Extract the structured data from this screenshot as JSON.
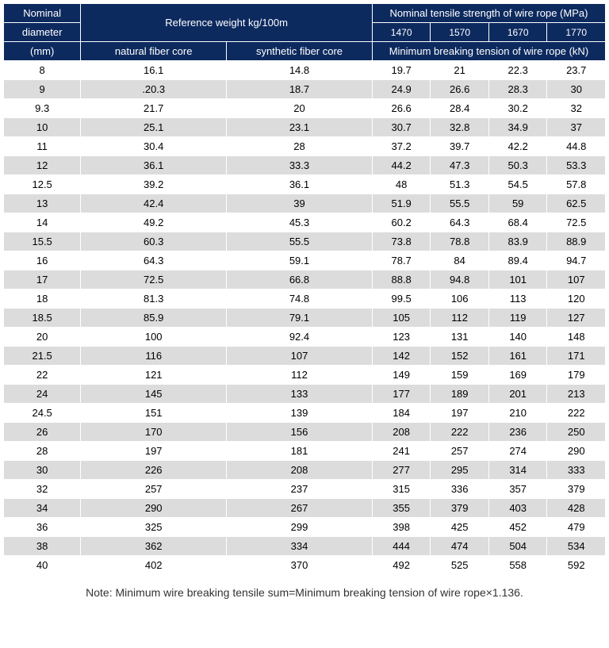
{
  "header": {
    "nominal": "Nominal",
    "diameter": "diameter",
    "diameter_unit": "(mm)",
    "ref_weight": "Reference weight kg/100m",
    "natural_core": "natural fiber core",
    "synthetic_core": "synthetic fiber core",
    "tensile_strength": "Nominal tensile strength of wire rope (MPa)",
    "strengths": [
      "1470",
      "1570",
      "1670",
      "1770"
    ],
    "min_breaking": "Minimum breaking tension of wire rope (kN)"
  },
  "rows": [
    {
      "d": "8",
      "nat": "16.1",
      "syn": "14.8",
      "v": [
        "19.7",
        "21",
        "22.3",
        "23.7"
      ]
    },
    {
      "d": "9",
      "nat": ".20.3",
      "syn": "18.7",
      "v": [
        "24.9",
        "26.6",
        "28.3",
        "30"
      ]
    },
    {
      "d": "9.3",
      "nat": "21.7",
      "syn": "20",
      "v": [
        "26.6",
        "28.4",
        "30.2",
        "32"
      ]
    },
    {
      "d": "10",
      "nat": "25.1",
      "syn": "23.1",
      "v": [
        "30.7",
        "32.8",
        "34.9",
        "37"
      ]
    },
    {
      "d": "11",
      "nat": "30.4",
      "syn": "28",
      "v": [
        "37.2",
        "39.7",
        "42.2",
        "44.8"
      ]
    },
    {
      "d": "12",
      "nat": "36.1",
      "syn": "33.3",
      "v": [
        "44.2",
        "47.3",
        "50.3",
        "53.3"
      ]
    },
    {
      "d": "12.5",
      "nat": "39.2",
      "syn": "36.1",
      "v": [
        "48",
        "51.3",
        "54.5",
        "57.8"
      ]
    },
    {
      "d": "13",
      "nat": "42.4",
      "syn": "39",
      "v": [
        "51.9",
        "55.5",
        "59",
        "62.5"
      ]
    },
    {
      "d": "14",
      "nat": "49.2",
      "syn": "45.3",
      "v": [
        "60.2",
        "64.3",
        "68.4",
        "72.5"
      ]
    },
    {
      "d": "15.5",
      "nat": "60.3",
      "syn": "55.5",
      "v": [
        "73.8",
        "78.8",
        "83.9",
        "88.9"
      ]
    },
    {
      "d": "16",
      "nat": "64.3",
      "syn": "59.1",
      "v": [
        "78.7",
        "84",
        "89.4",
        "94.7"
      ]
    },
    {
      "d": "17",
      "nat": "72.5",
      "syn": "66.8",
      "v": [
        "88.8",
        "94.8",
        "101",
        "107"
      ]
    },
    {
      "d": "18",
      "nat": "81.3",
      "syn": "74.8",
      "v": [
        "99.5",
        "106",
        "113",
        "120"
      ]
    },
    {
      "d": "18.5",
      "nat": "85.9",
      "syn": "79.1",
      "v": [
        "105",
        "112",
        "119",
        "127"
      ]
    },
    {
      "d": "20",
      "nat": "100",
      "syn": "92.4",
      "v": [
        "123",
        "131",
        "140",
        "148"
      ]
    },
    {
      "d": "21.5",
      "nat": "116",
      "syn": "107",
      "v": [
        "142",
        "152",
        "161",
        "171"
      ]
    },
    {
      "d": "22",
      "nat": "121",
      "syn": "112",
      "v": [
        "149",
        "159",
        "169",
        "179"
      ]
    },
    {
      "d": "24",
      "nat": "145",
      "syn": "133",
      "v": [
        "177",
        "189",
        "201",
        "213"
      ]
    },
    {
      "d": "24.5",
      "nat": "151",
      "syn": "139",
      "v": [
        "184",
        "197",
        "210",
        "222"
      ]
    },
    {
      "d": "26",
      "nat": "170",
      "syn": "156",
      "v": [
        "208",
        "222",
        "236",
        "250"
      ]
    },
    {
      "d": "28",
      "nat": "197",
      "syn": "181",
      "v": [
        "241",
        "257",
        "274",
        "290"
      ]
    },
    {
      "d": "30",
      "nat": "226",
      "syn": "208",
      "v": [
        "277",
        "295",
        "314",
        "333"
      ]
    },
    {
      "d": "32",
      "nat": "257",
      "syn": "237",
      "v": [
        "315",
        "336",
        "357",
        "379"
      ]
    },
    {
      "d": "34",
      "nat": "290",
      "syn": "267",
      "v": [
        "355",
        "379",
        "403",
        "428"
      ]
    },
    {
      "d": "36",
      "nat": "325",
      "syn": "299",
      "v": [
        "398",
        "425",
        "452",
        "479"
      ]
    },
    {
      "d": "38",
      "nat": "362",
      "syn": "334",
      "v": [
        "444",
        "474",
        "504",
        "534"
      ]
    },
    {
      "d": "40",
      "nat": "402",
      "syn": "370",
      "v": [
        "492",
        "525",
        "558",
        "592"
      ]
    }
  ],
  "note": "Note: Minimum wire breaking tensile sum=Minimum breaking tension of wire rope×1.136.",
  "colors": {
    "header_bg": "#0d2a5f",
    "header_fg": "#ffffff",
    "row_odd": "#ffffff",
    "row_even": "#dcdcdc",
    "border": "#ffffff"
  }
}
